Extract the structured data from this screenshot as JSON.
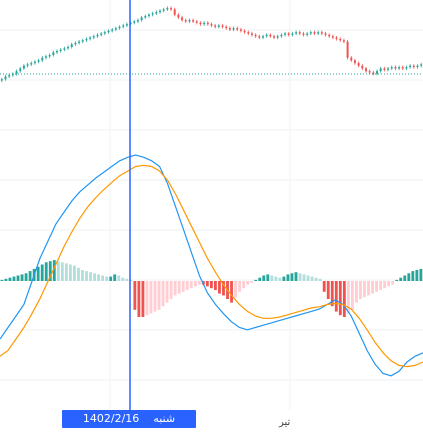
{
  "crosshair": {
    "date_label": "1402/2/16",
    "day_label": "شنبه"
  },
  "colors": {
    "up": "#26a69a",
    "down": "#ef5350",
    "macd": "#2196f3",
    "signal": "#ff9800",
    "hist_pos": "#26a69a",
    "hist_pos_fading": "#b2dfdb",
    "hist_neg": "#ef5350",
    "hist_neg_fading": "#ffcdd2",
    "crosshair": "#2962ff",
    "grid": "#eef0f3",
    "reference": "#26a69a"
  },
  "chart_data": [
    {
      "type": "candlestick",
      "title": "",
      "xlabel": "",
      "ylabel": "",
      "x_tick_labels": [
        "تیر"
      ],
      "grid": true,
      "reference_line": "dotted",
      "close": [
        14,
        16,
        17,
        18,
        20,
        22,
        24,
        25,
        26,
        27,
        28,
        30,
        31,
        32,
        34,
        35,
        36,
        37,
        38,
        40,
        41,
        42,
        43,
        44,
        45,
        46,
        47,
        48,
        49,
        50,
        51,
        52,
        53,
        54,
        55,
        56,
        57,
        58,
        60,
        61,
        62,
        63,
        64,
        65,
        66,
        67,
        66,
        62,
        60,
        58,
        57,
        58,
        57,
        56,
        55,
        56,
        55,
        54,
        53,
        54,
        53,
        52,
        51,
        52,
        51,
        50,
        49,
        48,
        47,
        46,
        45,
        46,
        47,
        46,
        45,
        46,
        47,
        48,
        47,
        48,
        49,
        48,
        47,
        48,
        49,
        48,
        49,
        48,
        47,
        46,
        45,
        44,
        43,
        42,
        30,
        28,
        26,
        24,
        22,
        20,
        19,
        18,
        20,
        22,
        21,
        22,
        23,
        22,
        23,
        22,
        23,
        24,
        23,
        24,
        25
      ]
    },
    {
      "type": "line",
      "title": "",
      "series": [
        {
          "values": [
            -0.6,
            -0.5,
            -0.4,
            -0.3,
            -0.1,
            0.1,
            0.25,
            0.4,
            0.5,
            0.6,
            0.68,
            0.74,
            0.8,
            0.85,
            0.9,
            0.95,
            0.98,
            1.0,
            0.98,
            0.95,
            0.9,
            0.75,
            0.55,
            0.35,
            0.15,
            -0.05,
            -0.2,
            -0.3,
            -0.38,
            -0.45,
            -0.5,
            -0.52,
            -0.5,
            -0.48,
            -0.46,
            -0.44,
            -0.42,
            -0.4,
            -0.38,
            -0.36,
            -0.34,
            -0.3,
            -0.26,
            -0.3,
            -0.4,
            -0.55,
            -0.7,
            -0.82,
            -0.9,
            -0.92,
            -0.88,
            -0.8,
            -0.75,
            -0.72
          ]
        },
        {
          "values": [
            -0.75,
            -0.7,
            -0.6,
            -0.5,
            -0.38,
            -0.25,
            -0.1,
            0.05,
            0.2,
            0.33,
            0.45,
            0.55,
            0.63,
            0.7,
            0.76,
            0.82,
            0.86,
            0.9,
            0.91,
            0.9,
            0.86,
            0.78,
            0.66,
            0.52,
            0.38,
            0.24,
            0.1,
            -0.02,
            -0.13,
            -0.22,
            -0.3,
            -0.36,
            -0.4,
            -0.42,
            -0.42,
            -0.41,
            -0.39,
            -0.37,
            -0.35,
            -0.33,
            -0.32,
            -0.3,
            -0.29,
            -0.3,
            -0.34,
            -0.42,
            -0.52,
            -0.63,
            -0.72,
            -0.79,
            -0.83,
            -0.84,
            -0.83,
            -0.8
          ]
        }
      ]
    },
    {
      "type": "bar",
      "title": "",
      "values": [
        0.05,
        0.1,
        0.15,
        0.2,
        0.25,
        0.3,
        0.35,
        0.45,
        0.55,
        0.65,
        0.75,
        0.85,
        0.9,
        0.95,
        0.9,
        0.85,
        0.8,
        0.75,
        0.7,
        0.6,
        0.5,
        0.45,
        0.4,
        0.35,
        0.3,
        0.25,
        0.2,
        0.2,
        0.3,
        0.25,
        0.15,
        0.1,
        0.05,
        -0.8,
        -1.0,
        -1.0,
        -0.95,
        -0.9,
        -0.85,
        -0.8,
        -0.7,
        -0.6,
        -0.5,
        -0.4,
        -0.35,
        -0.3,
        -0.25,
        -0.2,
        -0.15,
        -0.1,
        -0.1,
        -0.15,
        -0.2,
        -0.25,
        -0.35,
        -0.4,
        -0.5,
        -0.6,
        -0.45,
        -0.3,
        -0.2,
        -0.1,
        -0.05,
        0.05,
        0.15,
        0.25,
        0.3,
        0.25,
        0.2,
        0.15,
        0.2,
        0.3,
        0.35,
        0.4,
        0.35,
        0.3,
        0.25,
        0.2,
        0.15,
        0.1,
        -0.3,
        -0.5,
        -0.7,
        -0.85,
        -0.95,
        -1.0,
        -0.9,
        -0.8,
        -0.6,
        -0.5,
        -0.45,
        -0.4,
        -0.35,
        -0.3,
        -0.25,
        -0.2,
        -0.15,
        -0.1,
        0.05,
        0.15,
        0.25,
        0.35,
        0.45,
        0.5,
        0.55
      ]
    }
  ]
}
